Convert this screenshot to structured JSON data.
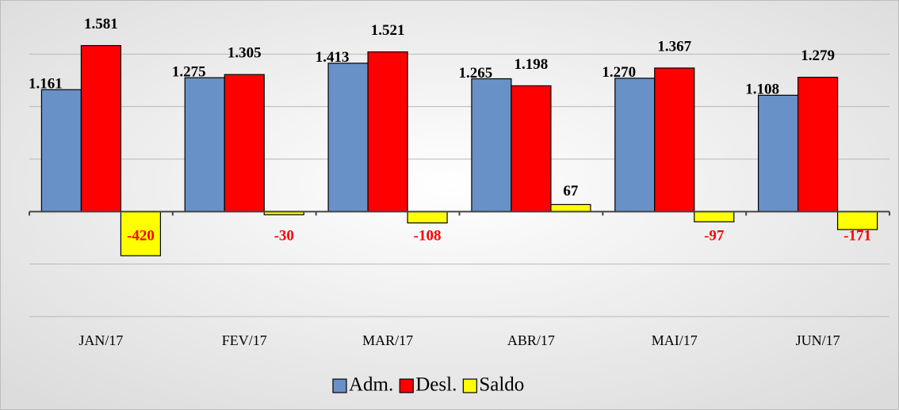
{
  "chart_data": {
    "type": "bar",
    "categories": [
      "JAN/17",
      "FEV/17",
      "MAR/17",
      "ABR/17",
      "MAI/17",
      "JUN/17"
    ],
    "series": [
      {
        "name": "Adm.",
        "color": "#6891c8",
        "values": [
          1161,
          1275,
          1413,
          1265,
          1270,
          1108
        ],
        "value_labels": [
          "1.161",
          "1.275",
          "1.413",
          "1.265",
          "1.270",
          "1.108"
        ]
      },
      {
        "name": "Desl.",
        "color": "#ff0000",
        "values": [
          1581,
          1305,
          1521,
          1198,
          1367,
          1279
        ],
        "value_labels": [
          "1.581",
          "1.305",
          "1.521",
          "1.198",
          "1.367",
          "1.279"
        ]
      },
      {
        "name": "Saldo",
        "color": "#ffff00",
        "values": [
          -420,
          -30,
          -108,
          67,
          -97,
          -171
        ]
      }
    ],
    "ylim": [
      -1000,
      2000
    ],
    "yticks": [
      -1000,
      -500,
      0,
      500,
      1000,
      1500
    ],
    "grid": true,
    "legend": "bottom"
  }
}
